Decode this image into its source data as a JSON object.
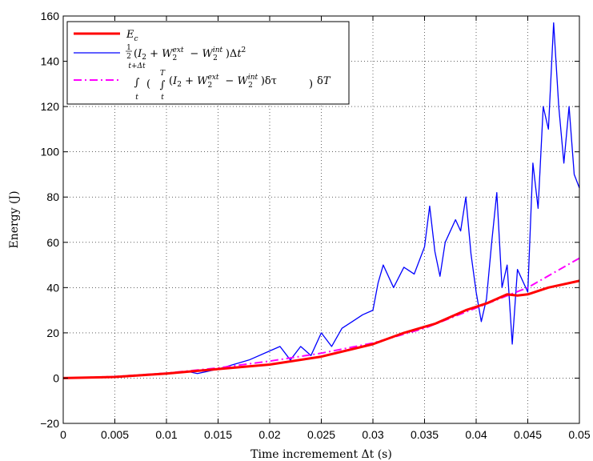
{
  "chart_data": {
    "type": "line",
    "xlabel": "Time incremement Δt (s)",
    "ylabel": "Energy (J)",
    "xlim": [
      0,
      0.05
    ],
    "ylim": [
      -20,
      160
    ],
    "xticks": [
      0,
      0.005,
      0.01,
      0.015,
      0.02,
      0.025,
      0.03,
      0.035,
      0.04,
      0.045,
      0.05
    ],
    "xtick_labels": [
      "0",
      "0.005",
      "0.01",
      "0.015",
      "0.02",
      "0.025",
      "0.03",
      "0.035",
      "0.04",
      "0.045",
      "0.05"
    ],
    "yticks": [
      -20,
      0,
      20,
      40,
      60,
      80,
      100,
      120,
      140,
      160
    ],
    "ytick_labels": [
      "−20",
      "0",
      "20",
      "40",
      "60",
      "80",
      "100",
      "120",
      "140",
      "160"
    ],
    "grid": true,
    "legend_position": "top-left",
    "series": [
      {
        "name": "E_c",
        "color": "#ff0000",
        "style": "solid-thick",
        "x": [
          0,
          0.005,
          0.01,
          0.015,
          0.02,
          0.025,
          0.03,
          0.033,
          0.036,
          0.039,
          0.041,
          0.043,
          0.044,
          0.045,
          0.047,
          0.05
        ],
        "y": [
          0,
          0.5,
          2,
          4,
          6,
          9.5,
          15,
          20,
          24,
          30,
          33,
          37,
          36.5,
          37,
          40,
          43
        ]
      },
      {
        "name": "½(I₂ + W₂ext − W₂int)Δt²",
        "color": "#0000ff",
        "style": "solid-thin",
        "x": [
          0,
          0.005,
          0.01,
          0.012,
          0.013,
          0.015,
          0.018,
          0.02,
          0.021,
          0.022,
          0.023,
          0.024,
          0.025,
          0.026,
          0.027,
          0.028,
          0.029,
          0.03,
          0.0305,
          0.031,
          0.032,
          0.033,
          0.034,
          0.035,
          0.0355,
          0.036,
          0.0365,
          0.037,
          0.038,
          0.0385,
          0.039,
          0.0395,
          0.04,
          0.0405,
          0.041,
          0.0415,
          0.042,
          0.0425,
          0.043,
          0.0435,
          0.044,
          0.045,
          0.0455,
          0.046,
          0.0465,
          0.047,
          0.0475,
          0.048,
          0.0485,
          0.049,
          0.0495,
          0.05
        ],
        "y": [
          0,
          0.5,
          2,
          3,
          2,
          4,
          8,
          12,
          14,
          8,
          14,
          10,
          20,
          14,
          22,
          25,
          28,
          30,
          42,
          50,
          40,
          49,
          46,
          58,
          76,
          56,
          45,
          60,
          70,
          65,
          80,
          55,
          38,
          25,
          35,
          60,
          82,
          40,
          50,
          15,
          48,
          38,
          95,
          75,
          120,
          110,
          157,
          120,
          95,
          120,
          90,
          84
        ]
      },
      {
        "name": "∫(∫(I₂ + W₂ext − W₂int)δτ)δT",
        "color": "#ff00ff",
        "style": "dash-dot",
        "x": [
          0,
          0.005,
          0.01,
          0.015,
          0.02,
          0.025,
          0.03,
          0.035,
          0.04,
          0.045,
          0.05
        ],
        "y": [
          0,
          0.7,
          2.2,
          4.5,
          7.5,
          11,
          15.5,
          22,
          31,
          40,
          53
        ]
      }
    ]
  }
}
